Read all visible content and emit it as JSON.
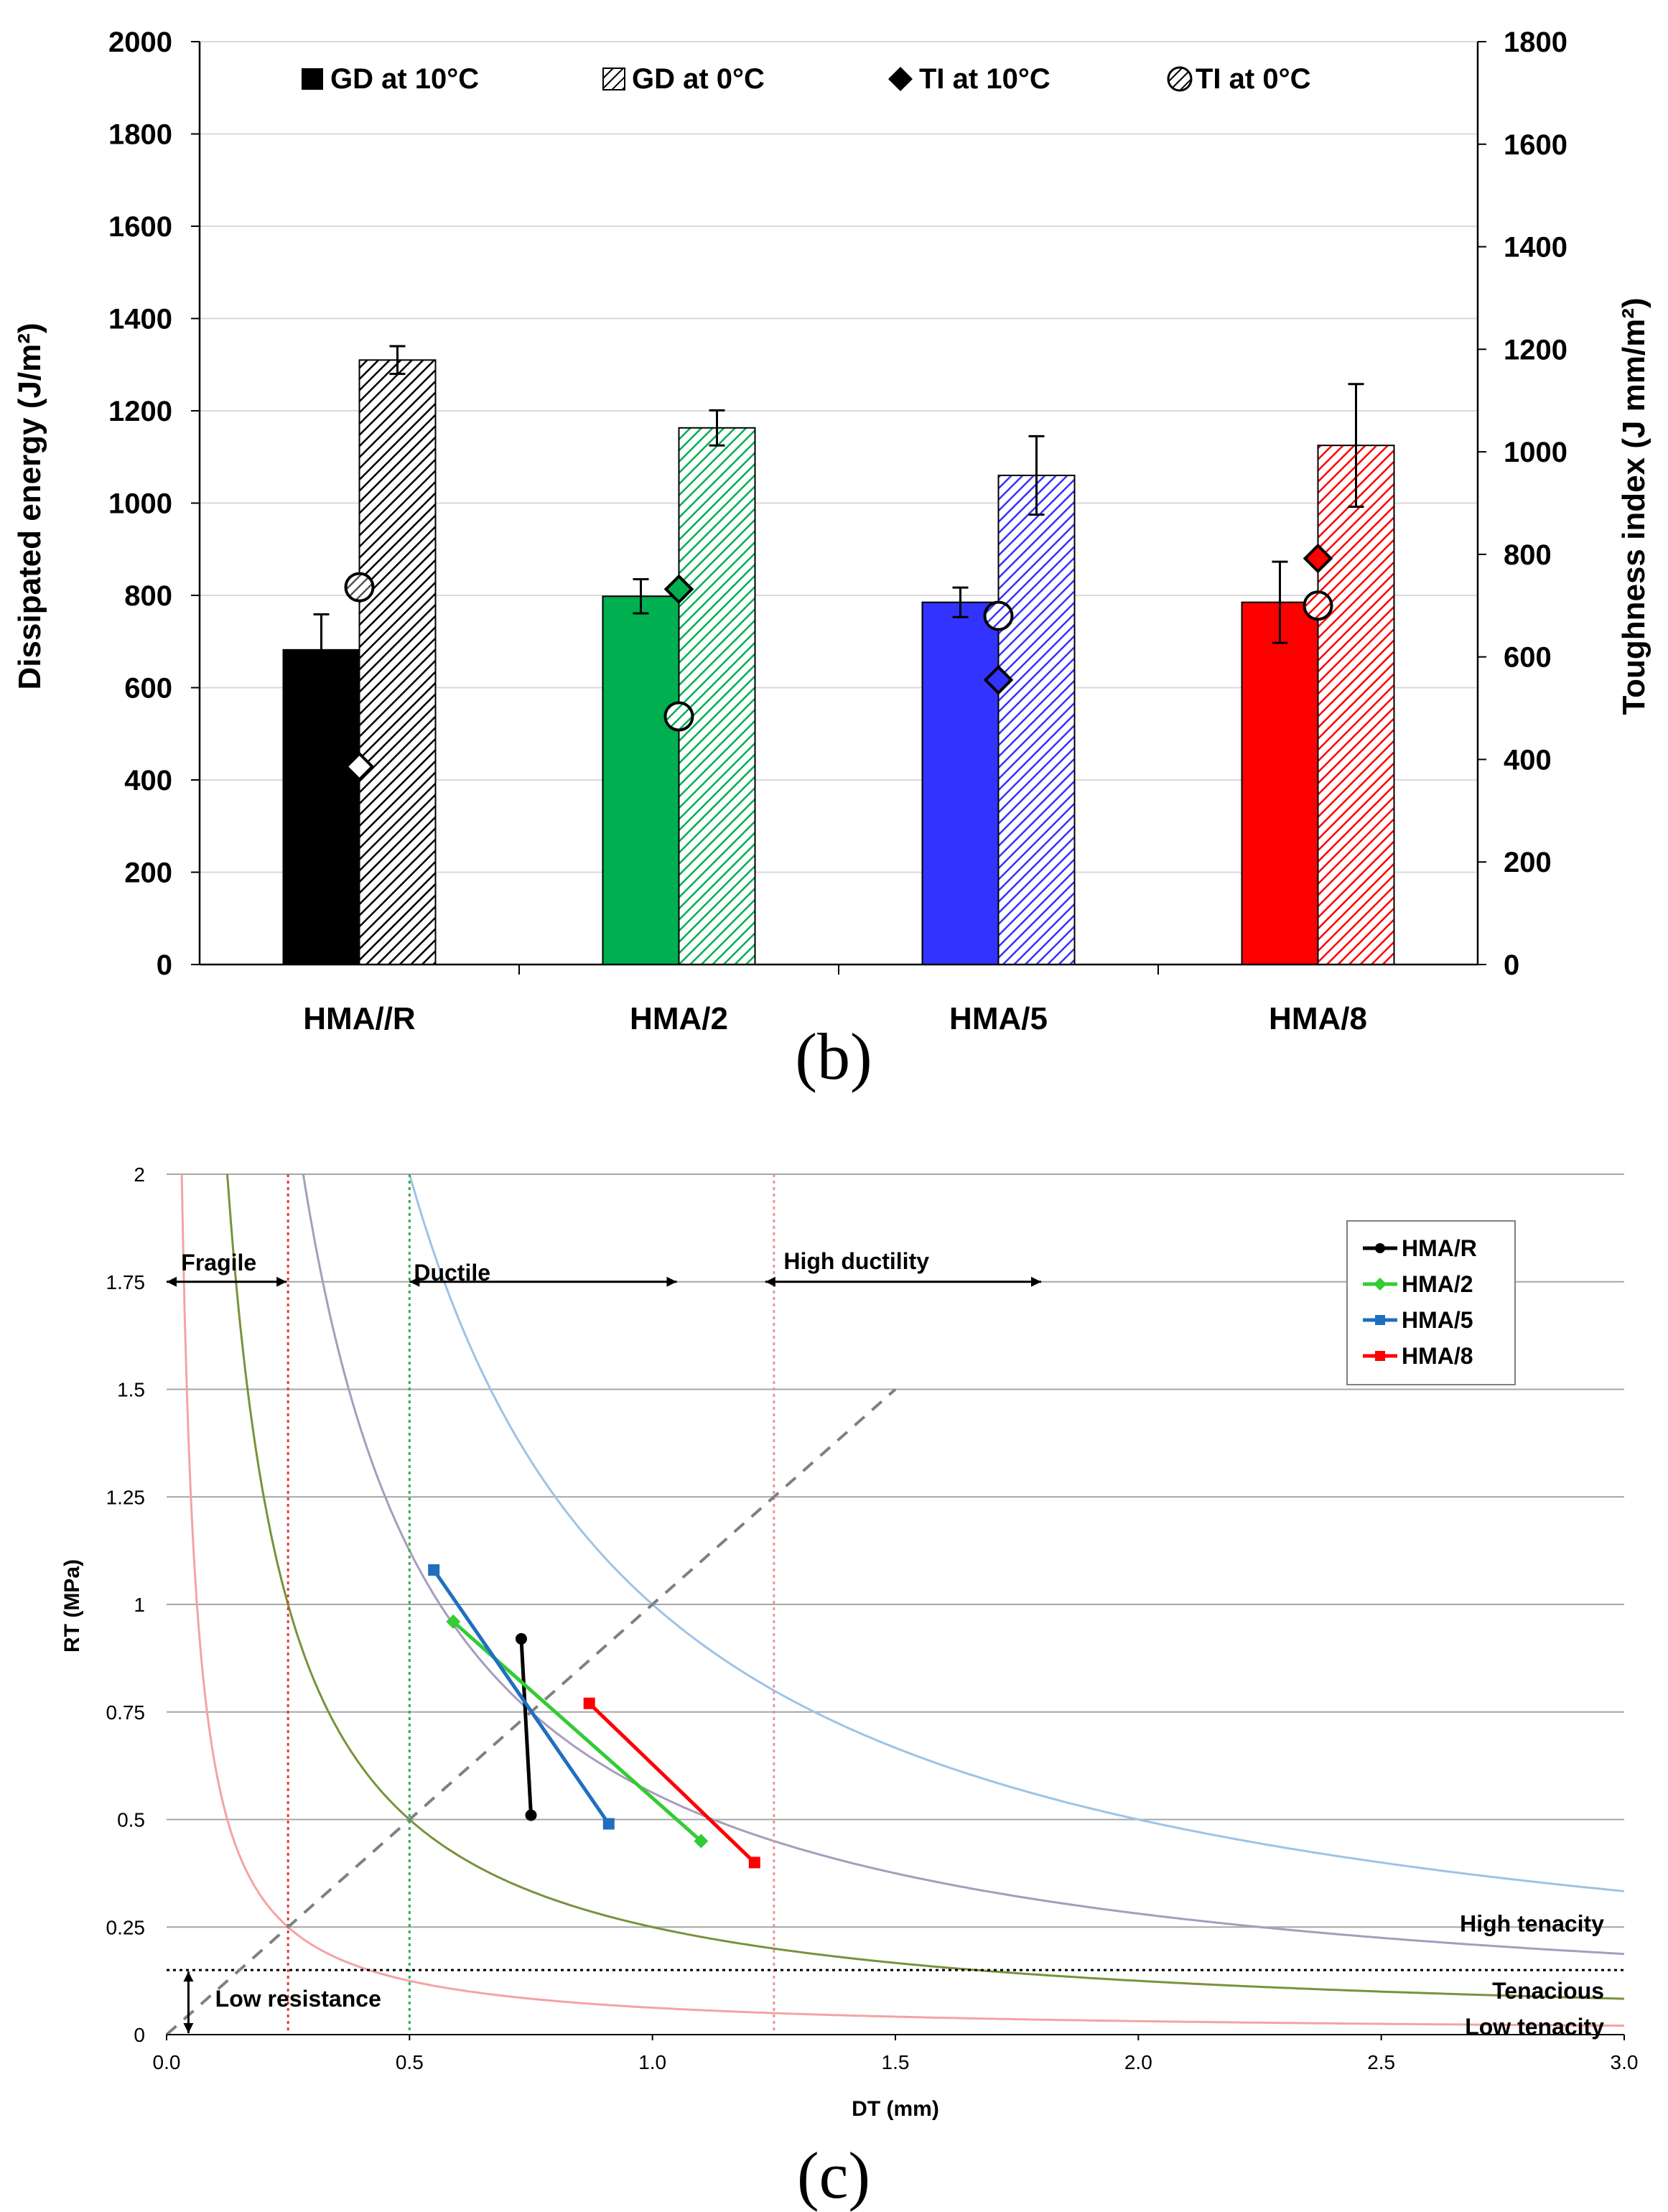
{
  "chart_data": [
    {
      "type": "bar",
      "panel_label": "(b)",
      "categories": [
        "HMA//R",
        "HMA/2",
        "HMA/5",
        "HMA/8"
      ],
      "bar_colors": [
        "#000000",
        "#00B050",
        "#3333FF",
        "#FF0000"
      ],
      "series": [
        {
          "name": "GD at 10°C",
          "axis": "left",
          "values": [
            682,
            798,
            785,
            785
          ],
          "errors": [
            77,
            37,
            32,
            88
          ],
          "pattern": "solid"
        },
        {
          "name": "GD at 0°C",
          "axis": "left",
          "values": [
            1310,
            1163,
            1060,
            1125
          ],
          "errors": [
            30,
            38,
            85,
            133
          ],
          "pattern": "hatched"
        },
        {
          "name": "TI at 10°C",
          "axis": "right",
          "marker": "diamond",
          "values": [
            386,
            732,
            555,
            792
          ]
        },
        {
          "name": "TI at 0°C",
          "axis": "right",
          "marker": "hatched-circle",
          "values": [
            736,
            484,
            680,
            700
          ]
        }
      ],
      "legend": [
        "GD at 10°C",
        "GD at 0°C",
        "TI at 10°C",
        "TI at 0°C"
      ],
      "ylabel": "Dissipated energy (J/m²)",
      "ylim": [
        0,
        2000
      ],
      "yticks": [
        0,
        200,
        400,
        600,
        800,
        1000,
        1200,
        1400,
        1600,
        1800,
        2000
      ],
      "y2label": "Toughness index (J mm/m²)",
      "y2lim": [
        0,
        1800
      ],
      "y2ticks": [
        0,
        200,
        400,
        600,
        800,
        1000,
        1200,
        1400,
        1600,
        1800
      ]
    },
    {
      "type": "line",
      "panel_label": "(c)",
      "xlabel": "DT (mm)",
      "ylabel": "RT (MPa)",
      "xlim": [
        0,
        3
      ],
      "ylim": [
        0,
        2
      ],
      "xticks": [
        "0.0",
        "0.5",
        "1.0",
        "1.5",
        "2.0",
        "2.5",
        "3.0"
      ],
      "yticks": [
        "0",
        "0.25",
        "0.5",
        "0.75",
        "1",
        "1.25",
        "1.5",
        "1.75",
        "2"
      ],
      "series": [
        {
          "name": "HMA/R",
          "color": "#000000",
          "marker": "circle",
          "x": [
            0.73,
            0.75
          ],
          "y": [
            0.92,
            0.51
          ]
        },
        {
          "name": "HMA/2",
          "color": "#33CC33",
          "marker": "diamond",
          "x": [
            0.59,
            1.1
          ],
          "y": [
            0.96,
            0.45
          ]
        },
        {
          "name": "HMA/5",
          "color": "#1F6FC0",
          "marker": "square",
          "x": [
            0.55,
            0.91
          ],
          "y": [
            1.08,
            0.49
          ]
        },
        {
          "name": "HMA/8",
          "color": "#FF0000",
          "marker": "square",
          "x": [
            0.87,
            1.21
          ],
          "y": [
            0.77,
            0.4
          ]
        }
      ],
      "curves": [
        {
          "k": 0.0625,
          "color": "#F4A3A3"
        },
        {
          "k": 0.25,
          "color": "#77933C"
        },
        {
          "k": 0.5625,
          "color": "#A99BBD"
        },
        {
          "k": 1.0,
          "color": "#9DC3E6"
        }
      ],
      "vertical_lines": [
        {
          "x": 0.25,
          "color": "#E23A3A"
        },
        {
          "x": 0.5,
          "color": "#2DB14A"
        },
        {
          "x": 1.25,
          "color": "#E39A9A"
        }
      ],
      "horizontal_line": {
        "y": 0.15
      },
      "annotations": [
        "Fragile",
        "Ductile",
        "High ductility",
        "High tenacity",
        "Tenacious",
        "Low tenacity",
        "Low resistance"
      ]
    }
  ]
}
